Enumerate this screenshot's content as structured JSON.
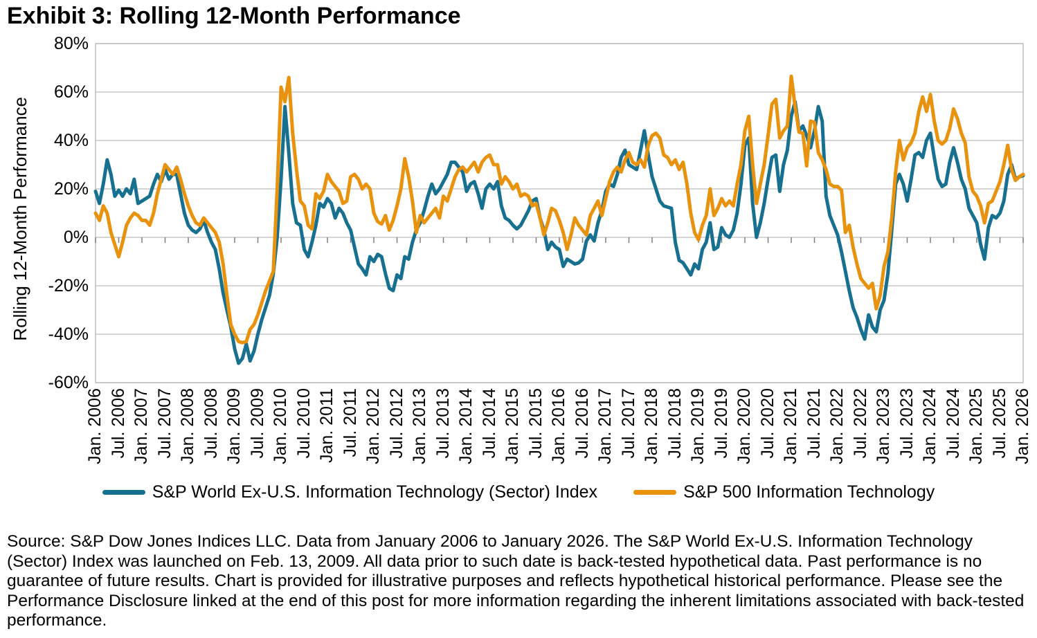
{
  "title": "Exhibit 3: Rolling 12-Month Performance",
  "footer": {
    "source_text": "Source: S&P Dow Jones Indices LLC. Data from January 2006 to January 2026. The S&P World Ex-U.S. Information Technology (Sector) Index was launched on Feb. 13, 2009. All data prior to such date is back-tested hypothetical data. Past performance is no guarantee of future results. Chart is provided for illustrative purposes and reflects hypothetical historical performance. Please see the Performance Disclosure linked at the end of this post for more information regarding the inherent limitations associated with back-tested performance."
  },
  "colors": {
    "world_ex_us": "#17708F",
    "sp500_it": "#E8920D",
    "gridline": "#C9C9C9",
    "border": "#BFBFBF",
    "tick": "#7F7F7F",
    "text": "#000000"
  },
  "chart_data": {
    "type": "line",
    "title": "Exhibit 3: Rolling 12-Month Performance",
    "ylabel": "Rolling 12-Month Performance",
    "ylim": [
      -60,
      80
    ],
    "y_ticks": [
      80,
      60,
      40,
      20,
      0,
      -20,
      -40,
      -60
    ],
    "y_tick_labels": [
      "80%",
      "60%",
      "40%",
      "20%",
      "0%",
      "-20%",
      "-40%",
      "-60%"
    ],
    "grid": "horizontal",
    "legend_position": "bottom",
    "x_start": "Jan 2006",
    "x_end": "Jan 2026",
    "frequency": "monthly",
    "x_tick_every_months": 6,
    "x_tick_labels": [
      "Jan. 2006",
      "Jul. 2006",
      "Jan. 2007",
      "Jul. 2007",
      "Jan. 2008",
      "Jul. 2008",
      "Jan. 2009",
      "Jul. 2009",
      "Jan. 2010",
      "Jul. 2010",
      "Jan. 2011",
      "Jul. 2011",
      "Jan. 2012",
      "Jul. 2012",
      "Jan. 2013",
      "Jul. 2013",
      "Jan. 2014",
      "Jul. 2014",
      "Jan. 2015",
      "Jul. 2015",
      "Jan. 2016",
      "Jul. 2016",
      "Jan. 2017",
      "Jul. 2017",
      "Jan. 2018",
      "Jul. 2018",
      "Jan. 2019",
      "Jul. 2019",
      "Jan. 2020",
      "Jul. 2020",
      "Jan. 2021",
      "Jul. 2021",
      "Jan. 2022",
      "Jul. 2022",
      "Jan. 2023",
      "Jul. 2023",
      "Jan. 2024",
      "Jul. 2024",
      "Jan. 2025",
      "Jul. 2025",
      "Jan. 2026"
    ],
    "series": [
      {
        "name": "S&P World Ex-U.S. Information Technology (Sector) Index",
        "color": "#17708F",
        "values": [
          19,
          14,
          22,
          32,
          26,
          17,
          19.5,
          17,
          20,
          18,
          24,
          14,
          15,
          16,
          17,
          22,
          26,
          23,
          28,
          24,
          26,
          26,
          18,
          10,
          5,
          3,
          2,
          3.5,
          7,
          2,
          -2,
          -5,
          -13,
          -23,
          -30,
          -37,
          -46,
          -52,
          -50,
          -44,
          -51,
          -47,
          -40,
          -34,
          -29,
          -24,
          -15,
          0,
          24,
          54,
          35,
          14,
          6,
          5,
          -5,
          -8,
          -2,
          5,
          14,
          12.5,
          16,
          14,
          8,
          12,
          10,
          6,
          3,
          -4,
          -11,
          -13,
          -15.5,
          -8,
          -10,
          -7,
          -8,
          -15,
          -21,
          -22,
          -15.5,
          -17,
          -8,
          -9,
          -2,
          3,
          6,
          11,
          17,
          22,
          18,
          20,
          23,
          26,
          31,
          31,
          29,
          27,
          19,
          22,
          23,
          18,
          12,
          20,
          22,
          20,
          23,
          13,
          8,
          7,
          5,
          3.5,
          5,
          8,
          11,
          15,
          16,
          8,
          3,
          -5,
          -2,
          -4,
          -5,
          -12,
          -9,
          -10,
          -11,
          -10.5,
          -9,
          -1.5,
          1,
          -1.5,
          6,
          11,
          19,
          22,
          21,
          26,
          33,
          36,
          30,
          29,
          28,
          36,
          44,
          34,
          25,
          20,
          15,
          13,
          12.5,
          12,
          -2,
          -9.5,
          -10.5,
          -13,
          -15.5,
          -11,
          -13,
          -5,
          -2,
          6,
          -5,
          -4,
          4,
          1,
          0,
          3,
          10,
          22,
          38,
          41,
          14,
          0,
          6,
          14,
          24,
          33,
          34,
          19,
          30,
          36,
          50,
          56,
          44,
          46,
          42,
          37,
          44,
          54,
          48,
          17,
          9,
          5,
          1,
          -6,
          -14,
          -22,
          -29,
          -33,
          -38,
          -42,
          -32,
          -37,
          -39,
          -30,
          -26,
          -15,
          3,
          22,
          26,
          22,
          15,
          24,
          34,
          35,
          33,
          40,
          43,
          33,
          24,
          21,
          22,
          31,
          37,
          31,
          24,
          20,
          12,
          9,
          6,
          -3,
          -9,
          4,
          9,
          8,
          10,
          15,
          26,
          30,
          24,
          25,
          25.5
        ]
      },
      {
        "name": "S&P 500 Information Technology",
        "color": "#E8920D",
        "values": [
          10,
          7,
          13,
          10,
          2,
          -3,
          -8,
          -2,
          5,
          8,
          10,
          9,
          7,
          7,
          5,
          10,
          18,
          24,
          30,
          28,
          26,
          29,
          24,
          18,
          13,
          9,
          6,
          5,
          8,
          6,
          4,
          2,
          -2,
          -11,
          -24,
          -36,
          -40,
          -43,
          -43.5,
          -43,
          -38,
          -36,
          -32,
          -27,
          -22,
          -18,
          -14,
          20,
          62,
          56,
          66,
          43,
          28,
          15,
          13,
          5,
          3.5,
          18,
          16,
          19,
          26,
          23,
          21,
          19,
          14,
          15,
          25,
          26,
          24,
          20,
          22,
          20,
          10,
          6.5,
          5.5,
          9,
          3,
          7,
          13,
          20,
          32.5,
          25,
          15,
          2,
          9,
          6,
          8,
          10,
          12,
          8,
          17,
          15,
          20,
          25,
          28,
          29,
          27,
          29,
          31,
          27,
          31,
          33,
          34,
          30,
          30,
          22,
          25,
          23,
          20,
          22,
          17,
          18,
          17,
          13,
          14,
          8,
          1,
          6,
          12,
          11,
          7,
          2,
          -5,
          1,
          8,
          5,
          3,
          1,
          9,
          12,
          15,
          9,
          16,
          23,
          27,
          29,
          27,
          32,
          35,
          31,
          30,
          32,
          29,
          38,
          42,
          43,
          41,
          34,
          33,
          30,
          32,
          28,
          31,
          22,
          10,
          2,
          -1,
          5,
          9,
          20,
          9,
          12,
          16,
          13,
          15,
          13,
          22,
          30,
          44,
          50,
          30,
          14,
          22,
          30,
          42,
          55,
          57,
          41,
          44,
          46,
          66.5,
          54,
          43.5,
          43,
          29.5,
          48,
          47.5,
          35,
          32,
          28,
          22,
          21,
          21,
          19.5,
          2,
          5,
          -4,
          -11,
          -17,
          -19,
          -21,
          -19,
          -29.5,
          -24,
          -12,
          -6,
          8,
          27,
          40,
          32,
          37,
          39,
          43,
          52,
          58,
          52,
          59,
          48,
          40,
          38.5,
          40,
          45,
          53,
          49,
          43,
          39,
          25,
          19,
          17,
          13,
          6,
          14,
          15,
          19,
          23,
          30,
          38,
          28,
          23.5,
          25,
          26
        ]
      }
    ]
  }
}
